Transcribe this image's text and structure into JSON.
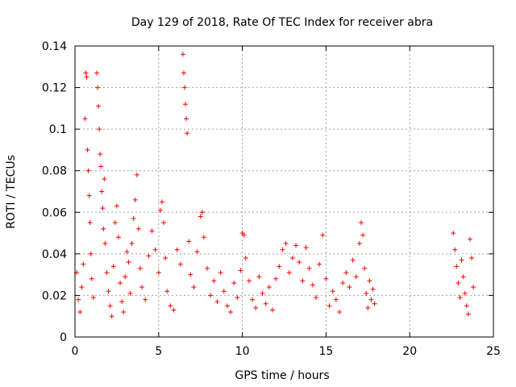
{
  "chart_data": {
    "type": "scatter",
    "title": "Day 129 of 2018, Rate Of TEC Index for receiver abra",
    "xlabel": "GPS time / hours",
    "ylabel": "ROTI / TECUs",
    "xlim": [
      0,
      25
    ],
    "ylim": [
      0,
      0.14
    ],
    "xticks": [
      0,
      5,
      10,
      15,
      20,
      25
    ],
    "xtick_labels": [
      "0",
      "5",
      "10",
      "15",
      "20",
      "25"
    ],
    "yticks": [
      0,
      0.02,
      0.04,
      0.06,
      0.08,
      0.1,
      0.12,
      0.14
    ],
    "ytick_labels": [
      "0",
      "0.02",
      "0.04",
      "0.06",
      "0.08",
      "0.1",
      "0.12",
      "0.14"
    ],
    "grid": true,
    "marker": "+",
    "color": "#ff0000",
    "series": [
      {
        "points": [
          [
            0.1,
            0.031
          ],
          [
            0.2,
            0.018
          ],
          [
            0.3,
            0.012
          ],
          [
            0.4,
            0.024
          ],
          [
            0.5,
            0.035
          ],
          [
            0.6,
            0.105
          ],
          [
            0.65,
            0.127
          ],
          [
            0.7,
            0.125
          ],
          [
            0.75,
            0.09
          ],
          [
            0.8,
            0.08
          ],
          [
            0.85,
            0.068
          ],
          [
            0.9,
            0.055
          ],
          [
            0.95,
            0.04
          ],
          [
            1.0,
            0.028
          ],
          [
            1.1,
            0.019
          ],
          [
            1.3,
            0.127
          ],
          [
            1.35,
            0.12
          ],
          [
            1.4,
            0.111
          ],
          [
            1.45,
            0.1
          ],
          [
            1.5,
            0.088
          ],
          [
            1.55,
            0.082
          ],
          [
            1.6,
            0.07
          ],
          [
            1.65,
            0.062
          ],
          [
            1.7,
            0.052
          ],
          [
            1.75,
            0.076
          ],
          [
            1.8,
            0.045
          ],
          [
            1.9,
            0.031
          ],
          [
            2.0,
            0.022
          ],
          [
            2.1,
            0.015
          ],
          [
            2.2,
            0.01
          ],
          [
            2.3,
            0.034
          ],
          [
            2.4,
            0.055
          ],
          [
            2.5,
            0.063
          ],
          [
            2.6,
            0.048
          ],
          [
            2.7,
            0.026
          ],
          [
            2.8,
            0.017
          ],
          [
            2.9,
            0.012
          ],
          [
            3.0,
            0.029
          ],
          [
            3.1,
            0.041
          ],
          [
            3.2,
            0.036
          ],
          [
            3.3,
            0.021
          ],
          [
            3.4,
            0.045
          ],
          [
            3.5,
            0.057
          ],
          [
            3.6,
            0.066
          ],
          [
            3.7,
            0.078
          ],
          [
            3.8,
            0.052
          ],
          [
            3.9,
            0.033
          ],
          [
            4.0,
            0.024
          ],
          [
            4.2,
            0.018
          ],
          [
            4.4,
            0.039
          ],
          [
            4.6,
            0.051
          ],
          [
            4.8,
            0.042
          ],
          [
            5.0,
            0.031
          ],
          [
            5.1,
            0.061
          ],
          [
            5.2,
            0.065
          ],
          [
            5.3,
            0.055
          ],
          [
            5.4,
            0.038
          ],
          [
            5.5,
            0.022
          ],
          [
            5.7,
            0.015
          ],
          [
            5.9,
            0.013
          ],
          [
            6.1,
            0.042
          ],
          [
            6.3,
            0.035
          ],
          [
            6.45,
            0.136
          ],
          [
            6.5,
            0.127
          ],
          [
            6.55,
            0.12
          ],
          [
            6.6,
            0.112
          ],
          [
            6.65,
            0.105
          ],
          [
            6.7,
            0.098
          ],
          [
            6.8,
            0.046
          ],
          [
            6.9,
            0.03
          ],
          [
            7.1,
            0.024
          ],
          [
            7.3,
            0.041
          ],
          [
            7.5,
            0.058
          ],
          [
            7.6,
            0.06
          ],
          [
            7.7,
            0.048
          ],
          [
            7.9,
            0.033
          ],
          [
            8.1,
            0.02
          ],
          [
            8.3,
            0.027
          ],
          [
            8.5,
            0.017
          ],
          [
            8.7,
            0.031
          ],
          [
            8.9,
            0.022
          ],
          [
            9.1,
            0.015
          ],
          [
            9.3,
            0.012
          ],
          [
            9.5,
            0.026
          ],
          [
            9.7,
            0.019
          ],
          [
            9.9,
            0.032
          ],
          [
            10.0,
            0.05
          ],
          [
            10.1,
            0.049
          ],
          [
            10.2,
            0.038
          ],
          [
            10.4,
            0.027
          ],
          [
            10.6,
            0.018
          ],
          [
            10.8,
            0.014
          ],
          [
            11.0,
            0.029
          ],
          [
            11.2,
            0.021
          ],
          [
            11.4,
            0.016
          ],
          [
            11.6,
            0.024
          ],
          [
            11.8,
            0.013
          ],
          [
            12.0,
            0.028
          ],
          [
            12.2,
            0.034
          ],
          [
            12.4,
            0.042
          ],
          [
            12.6,
            0.045
          ],
          [
            12.8,
            0.031
          ],
          [
            13.0,
            0.038
          ],
          [
            13.2,
            0.044
          ],
          [
            13.4,
            0.036
          ],
          [
            13.6,
            0.027
          ],
          [
            13.8,
            0.043
          ],
          [
            14.0,
            0.033
          ],
          [
            14.2,
            0.025
          ],
          [
            14.4,
            0.019
          ],
          [
            14.6,
            0.035
          ],
          [
            14.8,
            0.049
          ],
          [
            15.0,
            0.028
          ],
          [
            15.2,
            0.015
          ],
          [
            15.4,
            0.022
          ],
          [
            15.6,
            0.018
          ],
          [
            15.8,
            0.012
          ],
          [
            16.0,
            0.026
          ],
          [
            16.2,
            0.031
          ],
          [
            16.4,
            0.024
          ],
          [
            16.6,
            0.037
          ],
          [
            16.8,
            0.029
          ],
          [
            17.0,
            0.045
          ],
          [
            17.1,
            0.055
          ],
          [
            17.2,
            0.049
          ],
          [
            17.3,
            0.033
          ],
          [
            17.4,
            0.021
          ],
          [
            17.5,
            0.014
          ],
          [
            17.6,
            0.027
          ],
          [
            17.7,
            0.018
          ],
          [
            17.8,
            0.023
          ],
          [
            17.9,
            0.016
          ],
          [
            22.6,
            0.05
          ],
          [
            22.7,
            0.042
          ],
          [
            22.8,
            0.034
          ],
          [
            22.9,
            0.026
          ],
          [
            23.0,
            0.019
          ],
          [
            23.1,
            0.037
          ],
          [
            23.2,
            0.029
          ],
          [
            23.3,
            0.021
          ],
          [
            23.4,
            0.015
          ],
          [
            23.5,
            0.011
          ],
          [
            23.6,
            0.047
          ],
          [
            23.7,
            0.038
          ],
          [
            23.8,
            0.024
          ]
        ]
      }
    ]
  }
}
